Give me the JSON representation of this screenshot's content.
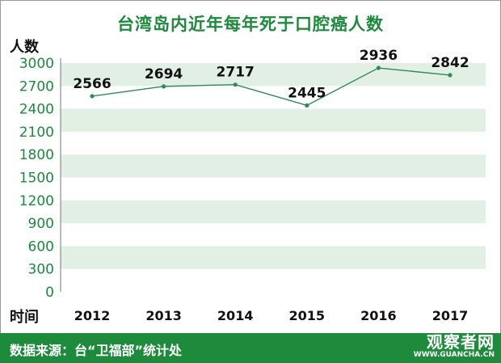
{
  "chart_data": {
    "type": "line",
    "title": "台湾岛内近年每年死于口腔癌人数",
    "ylabel": "人数",
    "xlabel": "时间",
    "categories": [
      "2012",
      "2013",
      "2014",
      "2015",
      "2016",
      "2017"
    ],
    "values": [
      2566,
      2694,
      2717,
      2445,
      2936,
      2842
    ],
    "yticks": [
      0,
      300,
      600,
      900,
      1200,
      1500,
      1800,
      2100,
      2400,
      2700,
      3000
    ],
    "ylim": [
      0,
      3000
    ],
    "grid": "alternating horizontal bands",
    "line_color": "#2e8b57",
    "band_color": "#e2efe4"
  },
  "footer": {
    "source": "数据来源：台“卫福部”统计处",
    "watermark": "观察者网",
    "watermark_url": "WWW.GUANCHA.CN",
    "bg_color": "#1d8a3c"
  }
}
